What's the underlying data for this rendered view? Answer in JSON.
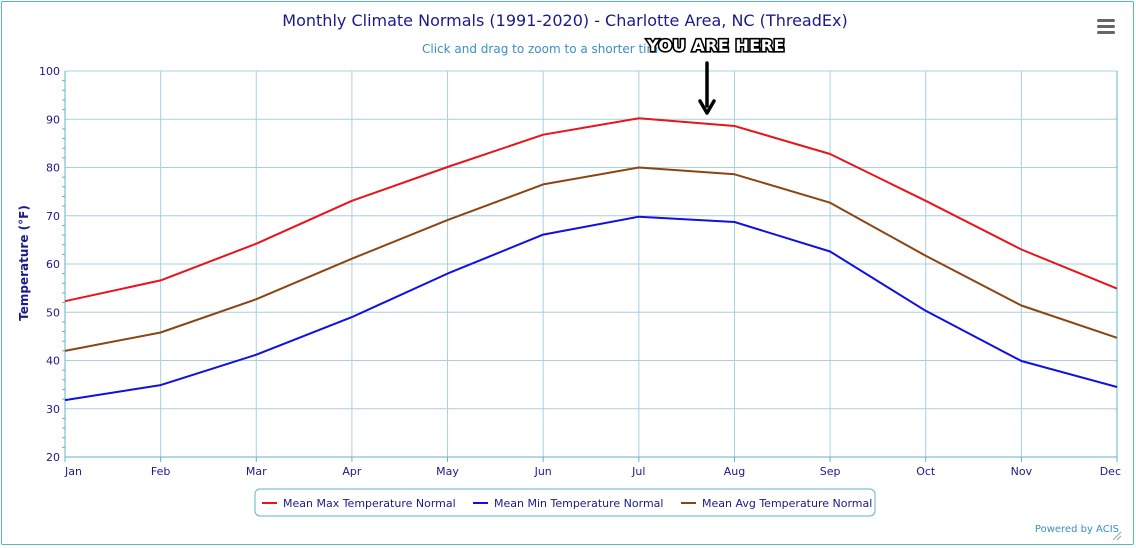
{
  "chart_data": {
    "type": "line",
    "title": "Monthly Climate Normals (1991-2020) - Charlotte Area, NC (ThreadEx)",
    "subtitle": "Click and drag to zoom to a shorter tim",
    "xlabel": "",
    "ylabel": "Temperature (°F)",
    "ylim": [
      20,
      100
    ],
    "yticks": [
      20,
      30,
      40,
      50,
      60,
      70,
      80,
      90,
      100
    ],
    "grid": true,
    "categories": [
      "Jan",
      "Feb",
      "Mar",
      "Apr",
      "May",
      "Jun",
      "Jul",
      "Aug",
      "Sep",
      "Oct",
      "Nov",
      "Dec"
    ],
    "series": [
      {
        "name": "Mean Max Temperature Normal",
        "color": "#e8141b",
        "values": [
          52.3,
          56.6,
          64.2,
          73.1,
          80.1,
          86.8,
          90.2,
          88.6,
          82.8,
          73.1,
          63.0,
          54.9
        ]
      },
      {
        "name": "Mean Min Temperature Normal",
        "color": "#1010e0",
        "values": [
          31.8,
          34.9,
          41.2,
          49.0,
          58.0,
          66.1,
          69.8,
          68.7,
          62.6,
          50.3,
          39.9,
          34.5
        ]
      },
      {
        "name": "Mean Avg Temperature Normal",
        "color": "#8b4513",
        "values": [
          42.0,
          45.8,
          52.7,
          61.1,
          69.1,
          76.5,
          80.0,
          78.6,
          72.7,
          61.7,
          51.4,
          44.7
        ]
      }
    ],
    "legend": "bottom-center",
    "annotation": {
      "text": "YOU ARE HERE",
      "points_to": "Jul-Aug"
    },
    "credit": "Powered by ACIS"
  },
  "colors": {
    "grid": "#a8d0e0",
    "axis": "#5fb3c9",
    "text": "#1a1a8c",
    "frame": "#5fb3c9"
  }
}
